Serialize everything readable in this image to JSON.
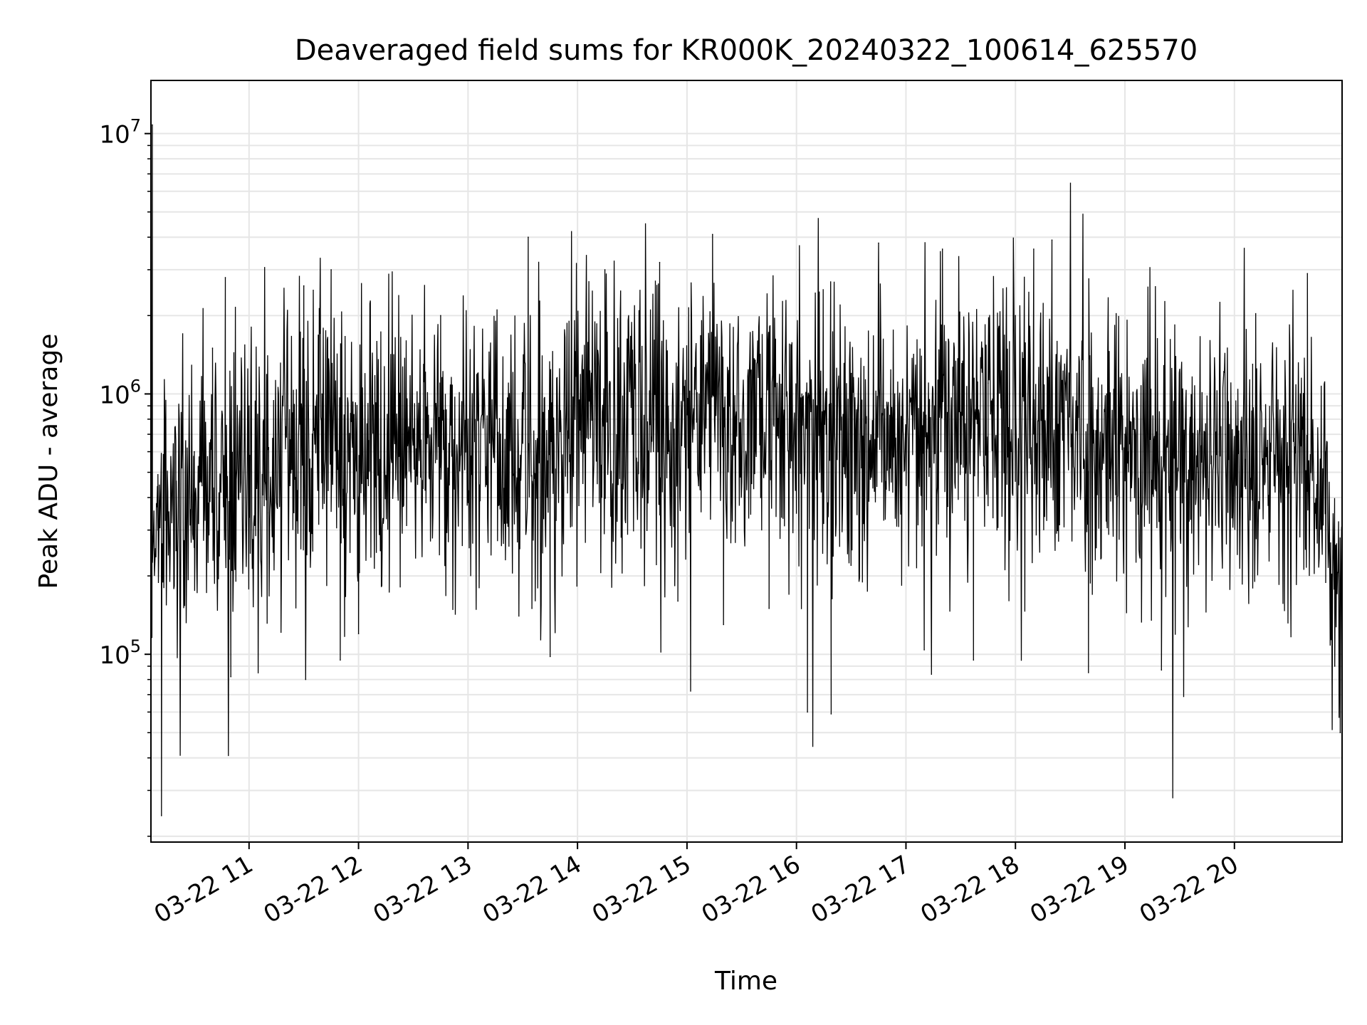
{
  "chart_data": {
    "type": "line",
    "title": "Deaveraged field sums for KR000K_20240322_100614_625570",
    "xlabel": "Time",
    "ylabel": "Peak ADU - average",
    "yscale": "log",
    "ylim": [
      19000,
      16000000
    ],
    "xlim": [
      "2024-03-22 10:06:14",
      "2024-03-22 20:59:00"
    ],
    "grid": true,
    "line_color": "#000000",
    "grid_color": "#e6e6e6",
    "x_ticks": [
      {
        "time": "2024-03-22 11:00",
        "label": "03-22 11"
      },
      {
        "time": "2024-03-22 12:00",
        "label": "03-22 12"
      },
      {
        "time": "2024-03-22 13:00",
        "label": "03-22 13"
      },
      {
        "time": "2024-03-22 14:00",
        "label": "03-22 14"
      },
      {
        "time": "2024-03-22 15:00",
        "label": "03-22 15"
      },
      {
        "time": "2024-03-22 16:00",
        "label": "03-22 16"
      },
      {
        "time": "2024-03-22 17:00",
        "label": "03-22 17"
      },
      {
        "time": "2024-03-22 18:00",
        "label": "03-22 18"
      },
      {
        "time": "2024-03-22 19:00",
        "label": "03-22 19"
      },
      {
        "time": "2024-03-22 20:00",
        "label": "03-22 20"
      }
    ],
    "y_ticks": [
      {
        "value": 100000,
        "base": "10",
        "exp": "5"
      },
      {
        "value": 1000000,
        "base": "10",
        "exp": "6"
      },
      {
        "value": 10000000,
        "base": "10",
        "exp": "7"
      }
    ],
    "series": [
      {
        "points": [
          [
            "2024-03-22 10:07",
            10800000
          ],
          [
            "2024-03-22 10:10",
            300000
          ],
          [
            "2024-03-22 10:12",
            24000
          ],
          [
            "2024-03-22 10:20",
            250000
          ],
          [
            "2024-03-22 10:30",
            600000
          ],
          [
            "2024-03-22 10:40",
            1500000
          ],
          [
            "2024-03-22 10:47",
            2800000
          ],
          [
            "2024-03-22 10:50",
            82000
          ],
          [
            "2024-03-22 11:00",
            900000
          ],
          [
            "2024-03-22 11:10",
            350000
          ],
          [
            "2024-03-22 11:20",
            700000
          ],
          [
            "2024-03-22 11:30",
            2600000
          ],
          [
            "2024-03-22 11:31",
            80000
          ],
          [
            "2024-03-22 11:40",
            1000000
          ],
          [
            "2024-03-22 11:45",
            3000000
          ],
          [
            "2024-03-22 11:50",
            95000
          ],
          [
            "2024-03-22 12:00",
            120000
          ],
          [
            "2024-03-22 12:30",
            700000
          ],
          [
            "2024-03-22 12:45",
            2000000
          ],
          [
            "2024-03-22 13:00",
            800000
          ],
          [
            "2024-03-22 13:30",
            800000
          ],
          [
            "2024-03-22 13:33",
            4000000
          ],
          [
            "2024-03-22 13:35",
            150000
          ],
          [
            "2024-03-22 13:45",
            98000
          ],
          [
            "2024-03-22 14:00",
            1200000
          ],
          [
            "2024-03-22 14:15",
            3000000
          ],
          [
            "2024-03-22 14:30",
            700000
          ],
          [
            "2024-03-22 14:45",
            3200000
          ],
          [
            "2024-03-22 14:55",
            160000
          ],
          [
            "2024-03-22 15:00",
            900000
          ],
          [
            "2024-03-22 15:14",
            4100000
          ],
          [
            "2024-03-22 15:20",
            130000
          ],
          [
            "2024-03-22 15:40",
            900000
          ],
          [
            "2024-03-22 15:45",
            150000
          ],
          [
            "2024-03-22 16:00",
            800000
          ],
          [
            "2024-03-22 16:06",
            60000
          ],
          [
            "2024-03-22 16:19",
            59000
          ],
          [
            "2024-03-22 16:30",
            1200000
          ],
          [
            "2024-03-22 16:45",
            3800000
          ],
          [
            "2024-03-22 17:00",
            600000
          ],
          [
            "2024-03-22 17:10",
            104000
          ],
          [
            "2024-03-22 17:20",
            3600000
          ],
          [
            "2024-03-22 17:37",
            95000
          ],
          [
            "2024-03-22 17:45",
            1100000
          ],
          [
            "2024-03-22 18:00",
            2000000
          ],
          [
            "2024-03-22 18:10",
            3600000
          ],
          [
            "2024-03-22 18:20",
            3900000
          ],
          [
            "2024-03-22 18:40",
            85000
          ],
          [
            "2024-03-22 18:50",
            1000000
          ],
          [
            "2024-03-22 19:00",
            700000
          ],
          [
            "2024-03-22 19:20",
            87000
          ],
          [
            "2024-03-22 19:40",
            500000
          ],
          [
            "2024-03-22 19:55",
            700000
          ],
          [
            "2024-03-22 20:10",
            1300000
          ],
          [
            "2024-03-22 20:30",
            500000
          ],
          [
            "2024-03-22 20:40",
            2900000
          ],
          [
            "2024-03-22 20:50",
            600000
          ],
          [
            "2024-03-22 20:55",
            90000
          ],
          [
            "2024-03-22 20:58",
            50000
          ]
        ]
      }
    ]
  }
}
